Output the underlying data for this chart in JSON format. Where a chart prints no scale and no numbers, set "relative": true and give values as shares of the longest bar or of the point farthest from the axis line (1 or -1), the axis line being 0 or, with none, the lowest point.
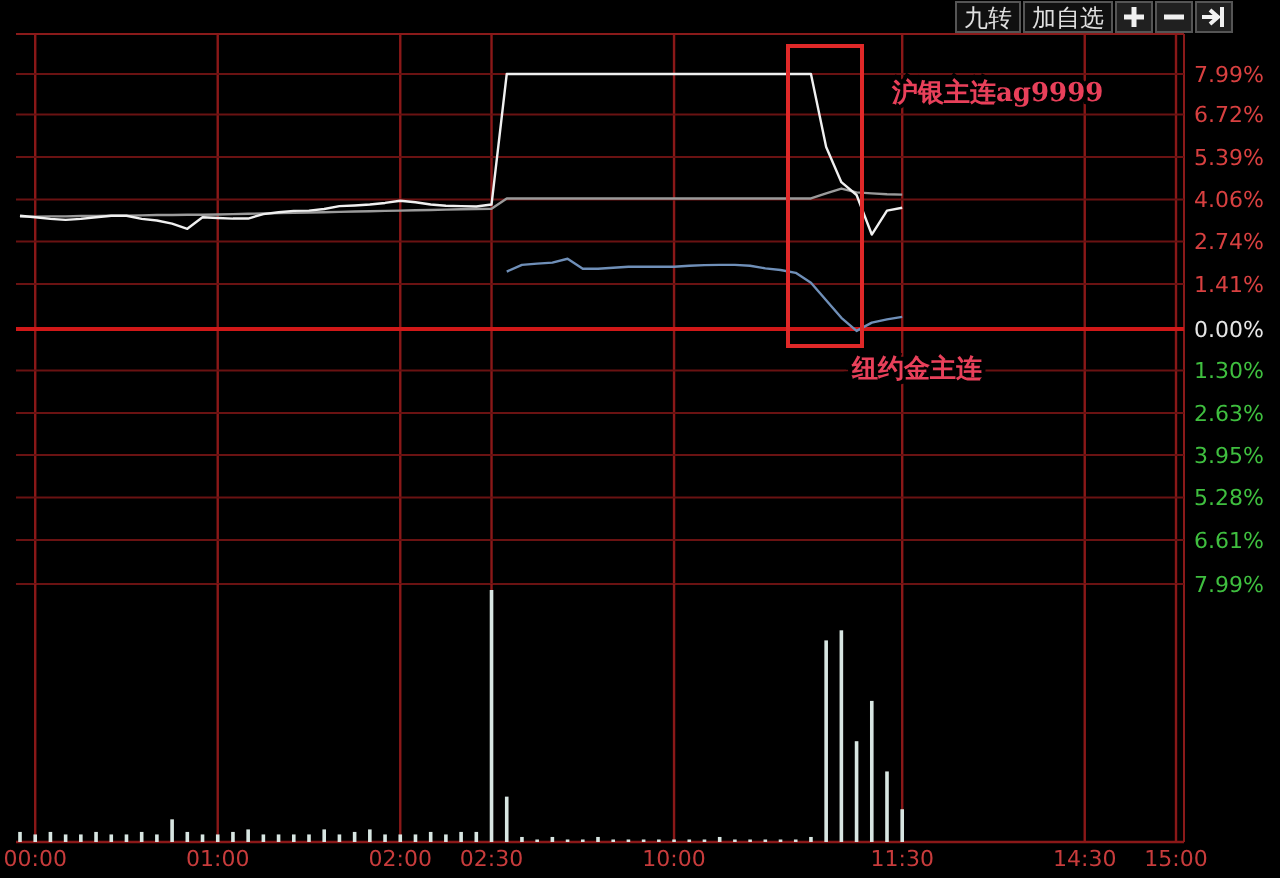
{
  "chart_data": [
    {
      "type": "line",
      "categories": [
        null,
        null,
        null,
        null,
        null,
        null,
        null,
        null,
        null,
        null,
        null,
        null,
        null,
        null,
        null,
        null,
        null,
        null,
        null,
        null,
        null,
        null,
        null,
        null,
        null,
        null,
        null,
        null,
        null,
        null,
        null,
        null,
        null,
        null,
        null,
        null,
        null,
        null,
        null,
        null,
        null,
        null,
        null,
        null,
        null,
        null,
        null,
        null,
        null,
        null,
        null,
        null,
        null,
        null,
        null,
        null,
        null,
        null,
        null,
        null,
        null,
        null,
        null,
        null,
        null,
        null,
        null,
        null,
        null,
        null,
        null,
        null,
        null,
        null,
        null,
        null,
        null
      ],
      "ylim": [
        -7.99,
        7.99
      ],
      "yticks": [
        {
          "value": 7.99,
          "label": "7.99%"
        },
        {
          "value": 6.72,
          "label": "6.72%"
        },
        {
          "value": 5.39,
          "label": "5.39%"
        },
        {
          "value": 4.06,
          "label": "4.06%"
        },
        {
          "value": 2.74,
          "label": "2.74%"
        },
        {
          "value": 1.41,
          "label": "1.41%"
        },
        {
          "value": 0,
          "label": "0.00%"
        },
        {
          "value": -1.3,
          "label": "1.30%"
        },
        {
          "value": -2.63,
          "label": "2.63%"
        },
        {
          "value": -3.95,
          "label": "3.95%"
        },
        {
          "value": -5.28,
          "label": "5.28%"
        },
        {
          "value": -6.61,
          "label": "6.61%"
        },
        {
          "value": -7.99,
          "label": "7.99%"
        }
      ],
      "tick_labels": "y",
      "grid": true,
      "line_style": "solid",
      "ref_lines": [
        {
          "axis": "y",
          "value": 0,
          "color": "#d01818"
        }
      ],
      "series": [
        {
          "color": "#9a9a9a",
          "values": [
            3.52,
            3.52,
            3.53,
            3.53,
            3.54,
            3.54,
            3.55,
            3.55,
            3.56,
            3.57,
            3.57,
            3.58,
            3.58,
            3.59,
            3.6,
            3.61,
            3.62,
            3.63,
            3.64,
            3.65,
            3.66,
            3.67,
            3.68,
            3.69,
            3.7,
            3.71,
            3.72,
            3.73,
            3.74,
            3.75,
            3.76,
            3.77,
            4.09,
            4.09,
            4.09,
            4.09,
            4.09,
            4.09,
            4.09,
            4.09,
            4.09,
            4.09,
            4.09,
            4.09,
            4.09,
            4.09,
            4.09,
            4.09,
            4.09,
            4.09,
            4.09,
            4.09,
            4.09,
            4.25,
            4.4,
            4.28,
            4.25,
            4.22,
            4.21,
            null,
            null,
            null,
            null,
            null,
            null,
            null,
            null,
            null,
            null,
            null,
            null,
            null,
            null,
            null,
            null,
            null,
            null
          ]
        },
        {
          "color": "#f0f0f0",
          "values": [
            3.55,
            3.5,
            3.45,
            3.42,
            3.45,
            3.5,
            3.55,
            3.55,
            3.45,
            3.4,
            3.3,
            3.14,
            3.5,
            3.48,
            3.46,
            3.46,
            3.6,
            3.66,
            3.7,
            3.71,
            3.76,
            3.85,
            3.87,
            3.9,
            3.95,
            4.02,
            3.97,
            3.9,
            3.86,
            3.85,
            3.84,
            3.9,
            7.99,
            7.99,
            7.99,
            7.99,
            7.99,
            7.99,
            7.99,
            7.99,
            7.99,
            7.99,
            7.99,
            7.99,
            7.99,
            7.99,
            7.99,
            7.99,
            7.99,
            7.99,
            7.99,
            7.99,
            7.99,
            5.7,
            4.6,
            4.2,
            2.96,
            3.71,
            3.8,
            null,
            null,
            null,
            null,
            null,
            null,
            null,
            null,
            null,
            null,
            null,
            null,
            null,
            null,
            null,
            null,
            null,
            null
          ]
        },
        {
          "color": "#6f8fb8",
          "values": [
            null,
            null,
            null,
            null,
            null,
            null,
            null,
            null,
            null,
            null,
            null,
            null,
            null,
            null,
            null,
            null,
            null,
            null,
            null,
            null,
            null,
            null,
            null,
            null,
            null,
            null,
            null,
            null,
            null,
            null,
            null,
            null,
            1.8,
            2.01,
            2.05,
            2.08,
            2.2,
            1.89,
            1.89,
            1.92,
            1.95,
            1.95,
            1.95,
            1.95,
            1.98,
            2.0,
            2.01,
            2.01,
            1.98,
            1.9,
            1.85,
            1.76,
            1.45,
            0.9,
            0.35,
            -0.06,
            0.2,
            0.3,
            0.38,
            null,
            null,
            null,
            null,
            null,
            null,
            null,
            null,
            null,
            null,
            null,
            null,
            null,
            null,
            null,
            null,
            null,
            null
          ]
        }
      ],
      "annotations": [
        "沪银主连ag9999",
        "纽约金主连",
        "九转",
        "加自选"
      ]
    },
    {
      "type": "bar",
      "relative": true,
      "tick_labels": "x",
      "grid": "x",
      "color": "#d8e6e2",
      "categories": [
        null,
        "00:00",
        null,
        null,
        null,
        null,
        null,
        null,
        null,
        null,
        null,
        null,
        null,
        "01:00",
        null,
        null,
        null,
        null,
        null,
        null,
        null,
        null,
        null,
        null,
        null,
        "02:00",
        null,
        null,
        null,
        null,
        null,
        "02:30",
        null,
        null,
        null,
        null,
        null,
        null,
        null,
        null,
        null,
        null,
        null,
        "10:00",
        null,
        null,
        null,
        null,
        null,
        null,
        null,
        null,
        null,
        null,
        null,
        null,
        null,
        null,
        "11:30",
        null,
        null,
        null,
        null,
        null,
        null,
        null,
        null,
        null,
        null,
        null,
        "14:30",
        null,
        null,
        null,
        null,
        null,
        "15:00"
      ],
      "values": [
        0.04,
        0.03,
        0.04,
        0.03,
        0.03,
        0.04,
        0.03,
        0.03,
        0.04,
        0.03,
        0.09,
        0.04,
        0.03,
        0.03,
        0.04,
        0.05,
        0.03,
        0.03,
        0.03,
        0.03,
        0.05,
        0.03,
        0.04,
        0.05,
        0.03,
        0.03,
        0.03,
        0.04,
        0.03,
        0.04,
        0.04,
        1,
        0.18,
        0.02,
        0.01,
        0.02,
        0.01,
        0.01,
        0.02,
        0.01,
        0.01,
        0.01,
        0.01,
        0.01,
        0.01,
        0.01,
        0.02,
        0.01,
        0.01,
        0.01,
        0.01,
        0.01,
        0.02,
        0.8,
        0.84,
        0.4,
        0.56,
        0.28,
        0.13,
        null,
        null,
        null,
        null,
        null,
        null,
        null,
        null,
        null,
        null,
        null,
        null,
        null,
        null,
        null,
        null,
        null,
        null
      ]
    }
  ]
}
